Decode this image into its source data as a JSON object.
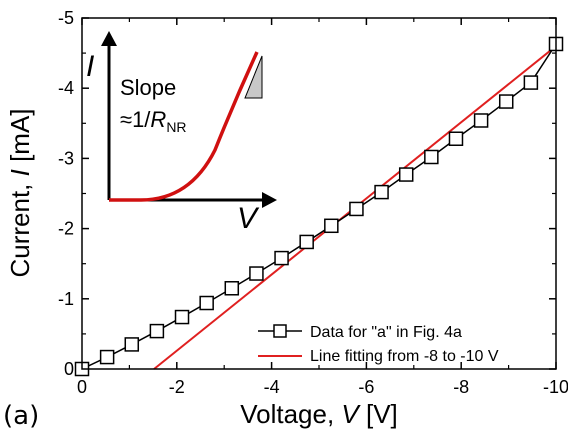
{
  "chart_data": {
    "type": "line",
    "xlabel_prefix": "Voltage, ",
    "xlabel_var": "V",
    "xlabel_suffix": " [V]",
    "ylabel_prefix": "Current, ",
    "ylabel_var": "I",
    "ylabel_suffix": " [mA]",
    "xlim": [
      0,
      -10
    ],
    "ylim": [
      0,
      -5
    ],
    "x_ticks": [
      0,
      -2,
      -4,
      -6,
      -8,
      -10
    ],
    "x_tick_labels": [
      "0",
      "-2",
      "-4",
      "-6",
      "-8",
      "-10"
    ],
    "y_ticks": [
      0,
      -1,
      -2,
      -3,
      -4,
      -5
    ],
    "y_tick_labels": [
      "0",
      "-1",
      "-2",
      "-3",
      "-4",
      "-5"
    ],
    "series": [
      {
        "name": "Data for \"a\" in Fig. 4a",
        "color": "#000000",
        "marker": "open-square",
        "x": [
          0,
          -0.53,
          -1.05,
          -1.58,
          -2.11,
          -2.63,
          -3.16,
          -3.68,
          -4.21,
          -4.74,
          -5.26,
          -5.79,
          -6.32,
          -6.84,
          -7.37,
          -7.89,
          -8.42,
          -8.95,
          -9.47,
          -10
        ],
        "y": [
          0,
          -0.17,
          -0.35,
          -0.54,
          -0.74,
          -0.94,
          -1.15,
          -1.36,
          -1.58,
          -1.81,
          -2.04,
          -2.28,
          -2.52,
          -2.77,
          -3.02,
          -3.28,
          -3.54,
          -3.81,
          -4.08,
          -4.63
        ]
      },
      {
        "name": "Line fitting from -8 to -10 V",
        "color": "#e02020",
        "marker": "none",
        "x": [
          -1.52,
          -10
        ],
        "y": [
          0,
          -4.6
        ]
      }
    ],
    "legend_position": "bottom-right",
    "panel_label": "(a)",
    "inset": {
      "x_axis_label": "V",
      "y_axis_label": "I",
      "slope_word": "Slope",
      "slope_formula_prefix": "≈1/",
      "slope_formula_var": "R",
      "slope_formula_sub": "NR",
      "curve_color": "#d01010",
      "triangle_fill": "#c8c8c8"
    }
  }
}
